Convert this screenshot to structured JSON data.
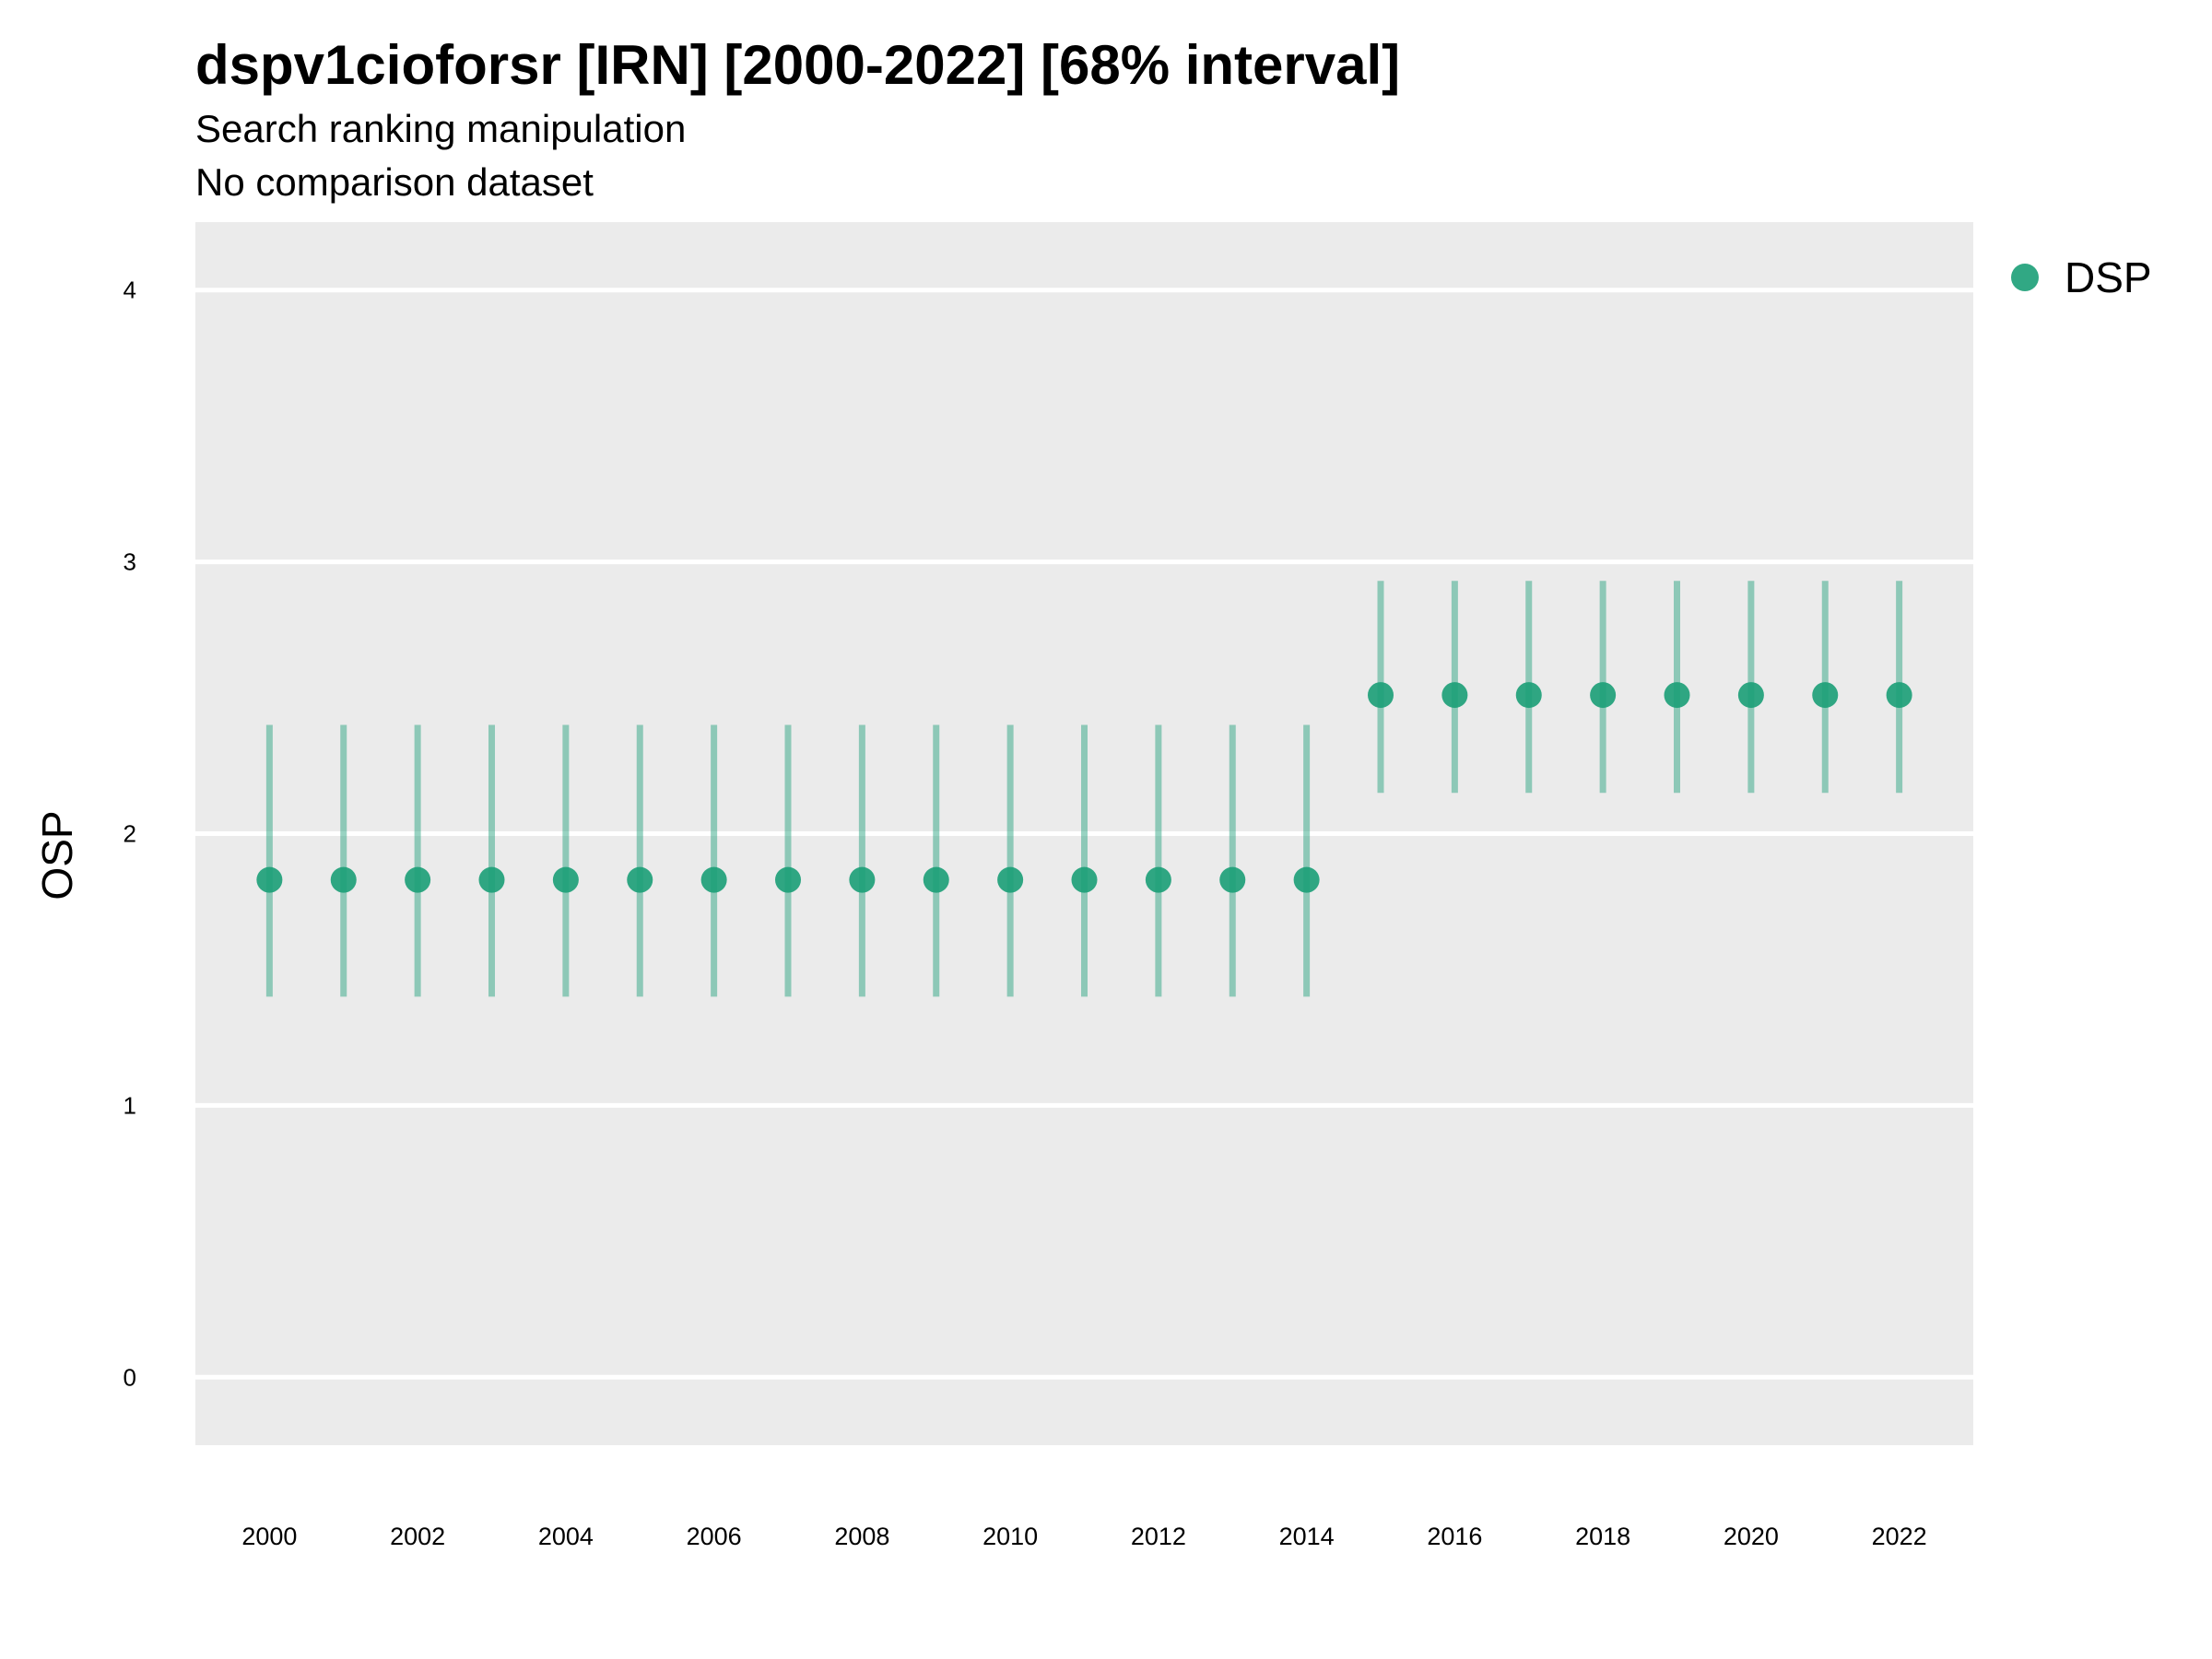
{
  "chart_data": {
    "type": "scatter",
    "title": "dspv1cioforsr [IRN] [2000-2022] [68% interval]",
    "subtitle": "Search ranking manipulation",
    "subtitle2": "No comparison dataset",
    "xlabel": "",
    "ylabel": "OSP",
    "x": [
      2000,
      2001,
      2002,
      2003,
      2004,
      2005,
      2006,
      2007,
      2008,
      2009,
      2010,
      2011,
      2012,
      2013,
      2014,
      2015,
      2016,
      2017,
      2018,
      2019,
      2020,
      2021,
      2022
    ],
    "x_ticks": [
      "2000",
      "2002",
      "2004",
      "2006",
      "2008",
      "2010",
      "2012",
      "2014",
      "2016",
      "2018",
      "2020",
      "2022"
    ],
    "y_ticks": [
      "0",
      "1",
      "2",
      "3",
      "4"
    ],
    "xlim": [
      1999,
      2023
    ],
    "ylim": [
      -0.25,
      4.25
    ],
    "grid": true,
    "legend_position": "right",
    "series": [
      {
        "name": "DSP",
        "color": "#1b9e77",
        "values": [
          1.83,
          1.83,
          1.83,
          1.83,
          1.83,
          1.83,
          1.83,
          1.83,
          1.83,
          1.83,
          1.83,
          1.83,
          1.83,
          1.83,
          1.83,
          2.51,
          2.51,
          2.51,
          2.51,
          2.51,
          2.51,
          2.51,
          2.51
        ],
        "lower": [
          1.4,
          1.4,
          1.4,
          1.4,
          1.4,
          1.4,
          1.4,
          1.4,
          1.4,
          1.4,
          1.4,
          1.4,
          1.4,
          1.4,
          1.4,
          2.15,
          2.15,
          2.15,
          2.15,
          2.15,
          2.15,
          2.15,
          2.15
        ],
        "upper": [
          2.4,
          2.4,
          2.4,
          2.4,
          2.4,
          2.4,
          2.4,
          2.4,
          2.4,
          2.4,
          2.4,
          2.4,
          2.4,
          2.4,
          2.4,
          2.93,
          2.93,
          2.93,
          2.93,
          2.93,
          2.93,
          2.93,
          2.93
        ]
      }
    ]
  }
}
